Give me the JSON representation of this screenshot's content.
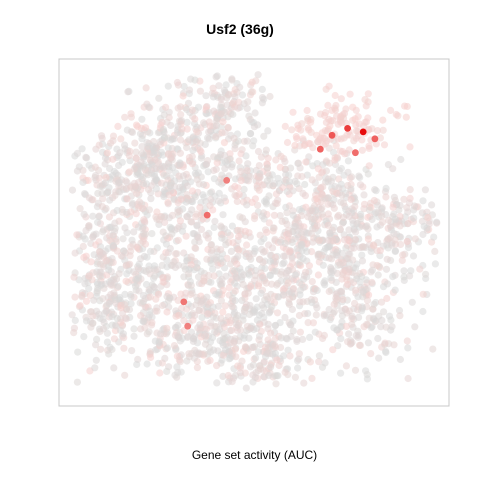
{
  "chart_data": {
    "type": "scatter",
    "title": "Usf2 (36g)",
    "xlabel": "Gene set activity (AUC)",
    "ylabel": "",
    "grid": false,
    "legend": "none",
    "axes_ticks_visible": false,
    "color_scale": {
      "low": "#d3d3d3",
      "mid": "#f7c9c6",
      "high": "#e60000"
    },
    "highlighted_points": [
      {
        "x": 0.78,
        "y": 0.79,
        "auc_level": 1.0
      },
      {
        "x": 0.74,
        "y": 0.8,
        "auc_level": 0.75
      },
      {
        "x": 0.7,
        "y": 0.78,
        "auc_level": 0.6
      },
      {
        "x": 0.81,
        "y": 0.77,
        "auc_level": 0.55
      },
      {
        "x": 0.67,
        "y": 0.74,
        "auc_level": 0.55
      },
      {
        "x": 0.76,
        "y": 0.73,
        "auc_level": 0.5
      },
      {
        "x": 0.38,
        "y": 0.55,
        "auc_level": 0.5
      },
      {
        "x": 0.32,
        "y": 0.3,
        "auc_level": 0.45
      },
      {
        "x": 0.33,
        "y": 0.23,
        "auc_level": 0.4
      },
      {
        "x": 0.43,
        "y": 0.65,
        "auc_level": 0.4
      }
    ]
  }
}
